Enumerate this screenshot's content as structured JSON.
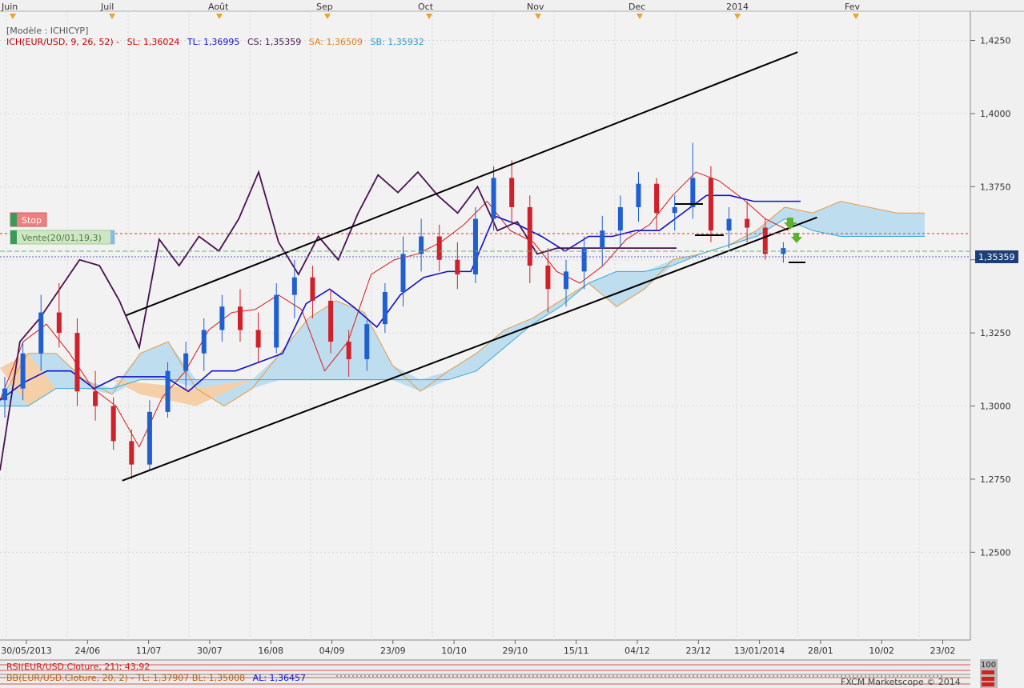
{
  "header": {
    "model": "[Modèle : ICHICYP]",
    "ich_prefix": "ICH(EUR/USD, 9, 26, 52) -",
    "sl": "SL: 1,36024",
    "tl": "TL: 1,36995",
    "cs": "CS: 1,35359",
    "sa": "SA: 1,36509",
    "sb": "SB: 1,35932"
  },
  "buttons": {
    "stop": "Stop",
    "sell": "Vente(20/01,19,3)"
  },
  "top_months": [
    "Juin",
    "Juil",
    "Août",
    "Sep",
    "Oct",
    "Nov",
    "Dec",
    "2014",
    "Fev"
  ],
  "x_ticks": [
    "30/05/2013",
    "24/06",
    "11/07",
    "30/07",
    "16/08",
    "04/09",
    "23/09",
    "10/10",
    "29/10",
    "15/11",
    "04/12",
    "23/12",
    "13/01/2014",
    "28/01",
    "10/02",
    "23/02"
  ],
  "y_ticks": [
    "1,4250",
    "1,4000",
    "1,3750",
    "1,3500",
    "1,3250",
    "1,3000",
    "1,2750",
    "1,2500"
  ],
  "current_price": "1,35359",
  "rsi_label": "RSI(EUR/USD.Cloture, 21): 43,92",
  "rsi_scale": "100",
  "bb_label": "BB(EUR/USD.Cloture, 20, 2) - TL: 1,37907  BL: 1,35008",
  "bb_al": "AL: 1,36457",
  "footer": "FXCM Marketscope © 2014",
  "colors": {
    "up": "#1f5fd0",
    "down": "#d0202a",
    "tenkan": "#d81818",
    "kijun": "#1010c8",
    "chikou": "#4a1050",
    "senkou_a": "#e89a40",
    "senkou_b": "#3aaad8",
    "cloud_bull": "#b8dcef",
    "cloud_bear": "#f5cfa8"
  },
  "chart_data": {
    "type": "candlestick",
    "instrument": "EUR/USD",
    "ylim": [
      1.22,
      1.435
    ],
    "channel": {
      "upper": [
        [
          0.13,
          1.331
        ],
        [
          0.822,
          1.421
        ]
      ],
      "lower": [
        [
          0.126,
          1.2745
        ],
        [
          0.842,
          1.3645
        ]
      ]
    },
    "series": [
      {
        "name": "SL",
        "values": [
          1.302,
          1.322,
          1.328,
          1.318,
          1.306,
          1.3,
          1.286,
          1.303,
          1.312,
          1.326,
          1.332,
          1.333,
          1.338,
          1.333,
          1.312,
          1.322,
          1.345,
          1.35,
          1.352,
          1.356,
          1.362,
          1.37,
          1.36,
          1.356,
          1.346,
          1.342,
          1.348,
          1.357,
          1.362,
          1.372,
          1.38,
          1.377,
          1.371,
          1.364,
          1.36
        ]
      },
      {
        "name": "TL",
        "values": [
          1.302,
          1.308,
          1.312,
          1.312,
          1.306,
          1.31,
          1.31,
          1.31,
          1.305,
          1.312,
          1.312,
          1.315,
          1.318,
          1.335,
          1.34,
          1.334,
          1.327,
          1.338,
          1.344,
          1.346,
          1.346,
          1.365,
          1.362,
          1.358,
          1.353,
          1.358,
          1.358,
          1.36,
          1.36,
          1.366,
          1.372,
          1.372,
          1.37,
          1.37,
          1.37
        ]
      },
      {
        "name": "CS",
        "values": [
          1.278,
          1.322,
          1.33,
          1.34,
          1.35,
          1.348,
          1.336,
          1.32,
          1.357,
          1.348,
          1.358,
          1.353,
          1.364,
          1.38,
          1.356,
          1.345,
          1.358,
          1.35,
          1.366,
          1.379,
          1.373,
          1.38,
          1.372,
          1.366,
          1.375,
          1.36,
          1.363,
          1.352,
          1.354,
          1.354,
          1.354,
          1.354,
          1.354,
          1.354,
          1.354
        ]
      }
    ],
    "candles": [
      [
        1.302,
        1.31,
        1.296,
        1.306
      ],
      [
        1.306,
        1.322,
        1.302,
        1.318
      ],
      [
        1.318,
        1.338,
        1.312,
        1.332
      ],
      [
        1.332,
        1.342,
        1.32,
        1.325
      ],
      [
        1.325,
        1.33,
        1.3,
        1.305
      ],
      [
        1.305,
        1.312,
        1.295,
        1.3
      ],
      [
        1.3,
        1.303,
        1.285,
        1.288
      ],
      [
        1.288,
        1.292,
        1.275,
        1.28
      ],
      [
        1.28,
        1.302,
        1.278,
        1.298
      ],
      [
        1.298,
        1.315,
        1.296,
        1.312
      ],
      [
        1.312,
        1.322,
        1.306,
        1.318
      ],
      [
        1.318,
        1.33,
        1.312,
        1.326
      ],
      [
        1.326,
        1.338,
        1.322,
        1.334
      ],
      [
        1.334,
        1.34,
        1.322,
        1.326
      ],
      [
        1.326,
        1.332,
        1.315,
        1.32
      ],
      [
        1.32,
        1.342,
        1.318,
        1.338
      ],
      [
        1.338,
        1.35,
        1.33,
        1.344
      ],
      [
        1.344,
        1.348,
        1.33,
        1.336
      ],
      [
        1.336,
        1.34,
        1.318,
        1.322
      ],
      [
        1.322,
        1.326,
        1.31,
        1.316
      ],
      [
        1.316,
        1.33,
        1.312,
        1.328
      ],
      [
        1.328,
        1.342,
        1.325,
        1.339
      ],
      [
        1.339,
        1.358,
        1.334,
        1.352
      ],
      [
        1.352,
        1.364,
        1.346,
        1.358
      ],
      [
        1.358,
        1.362,
        1.346,
        1.35
      ],
      [
        1.35,
        1.356,
        1.34,
        1.345
      ],
      [
        1.345,
        1.368,
        1.342,
        1.364
      ],
      [
        1.364,
        1.382,
        1.36,
        1.378
      ],
      [
        1.378,
        1.384,
        1.362,
        1.368
      ],
      [
        1.368,
        1.372,
        1.342,
        1.348
      ],
      [
        1.348,
        1.354,
        1.332,
        1.34
      ],
      [
        1.34,
        1.35,
        1.334,
        1.346
      ],
      [
        1.346,
        1.358,
        1.34,
        1.354
      ],
      [
        1.354,
        1.365,
        1.348,
        1.36
      ],
      [
        1.36,
        1.372,
        1.354,
        1.368
      ],
      [
        1.368,
        1.38,
        1.363,
        1.376
      ],
      [
        1.376,
        1.378,
        1.36,
        1.366
      ],
      [
        1.366,
        1.372,
        1.36,
        1.368
      ],
      [
        1.368,
        1.39,
        1.364,
        1.378
      ],
      [
        1.378,
        1.382,
        1.356,
        1.36
      ],
      [
        1.36,
        1.368,
        1.354,
        1.364
      ],
      [
        1.364,
        1.37,
        1.356,
        1.361
      ],
      [
        1.361,
        1.364,
        1.35,
        1.352
      ],
      [
        1.352,
        1.356,
        1.349,
        1.354
      ]
    ]
  }
}
